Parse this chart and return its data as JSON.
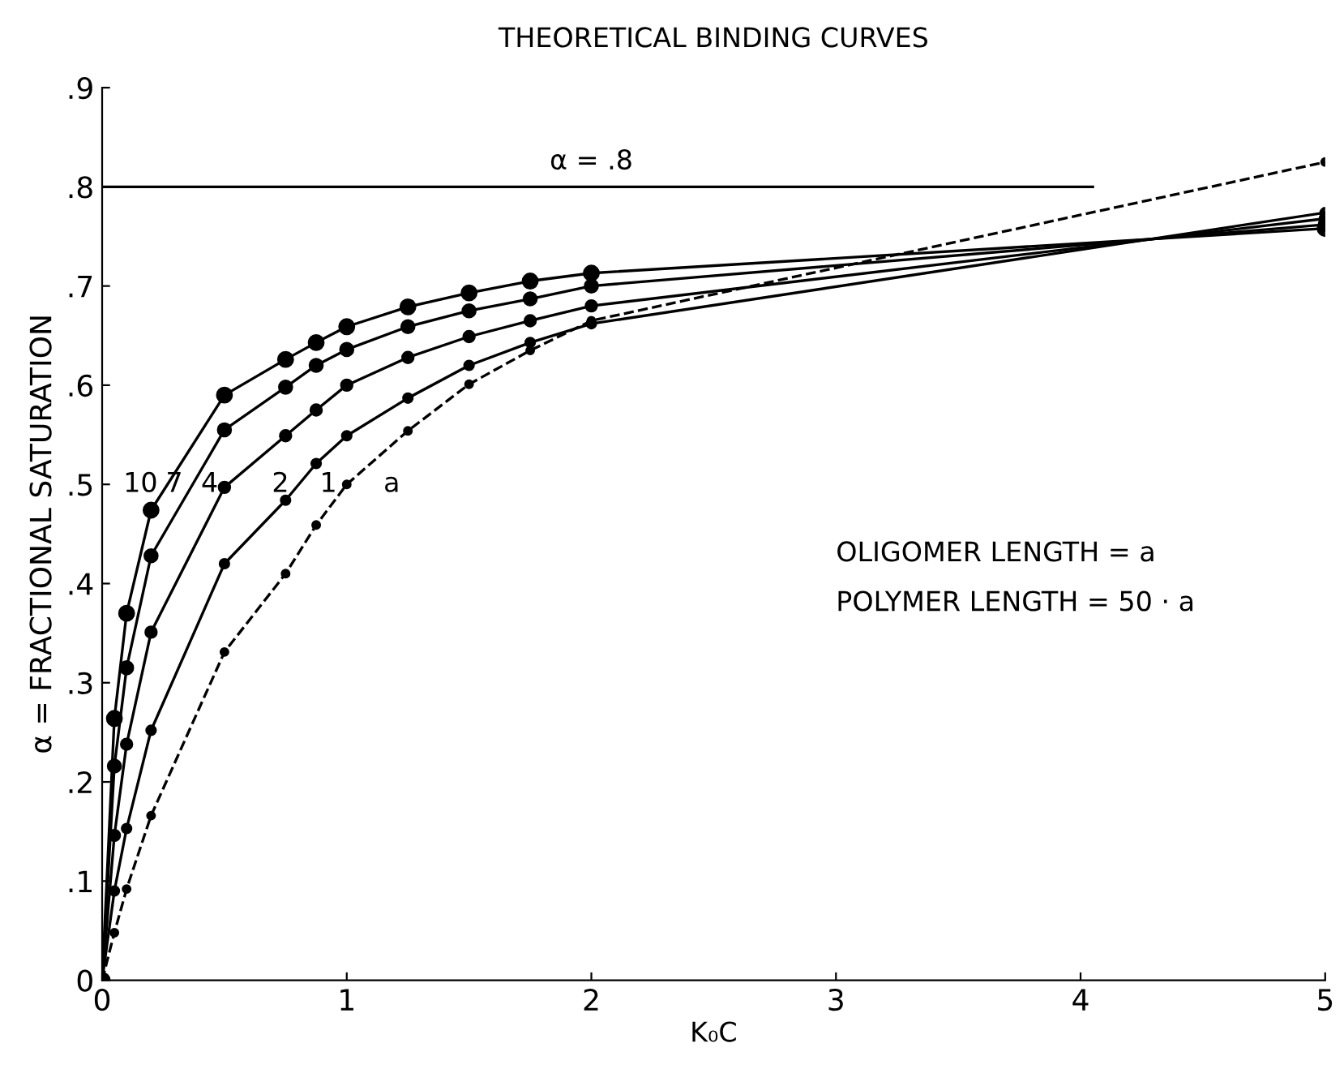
{
  "chart_data": {
    "type": "line",
    "title": "THEORETICAL BINDING CURVES",
    "xlabel": "K₀C",
    "ylabel": "α = FRACTIONAL SATURATION",
    "xlim": [
      0,
      5
    ],
    "ylim": [
      0,
      0.9
    ],
    "xticks": [
      0,
      1,
      2,
      3,
      4,
      5
    ],
    "yticks": [
      0,
      {
        "value": 0.1,
        "label": ".1"
      },
      {
        "value": 0.2,
        "label": ".2"
      },
      {
        "value": 0.3,
        "label": ".3"
      },
      {
        "value": 0.4,
        "label": ".4"
      },
      {
        "value": 0.5,
        "label": ".5"
      },
      {
        "value": 0.6,
        "label": ".6"
      },
      {
        "value": 0.7,
        "label": ".7"
      },
      {
        "value": 0.8,
        "label": ".8"
      },
      {
        "value": 0.9,
        "label": ".9"
      }
    ],
    "x": [
      0,
      0.05,
      0.1,
      0.2,
      0.5,
      0.75,
      0.875,
      1,
      1.25,
      1.5,
      1.75,
      2,
      5
    ],
    "marker": "circle",
    "grid": false,
    "legend": false,
    "series": [
      {
        "name": "10",
        "color": "#000000",
        "line_style": "solid",
        "values": [
          0,
          0.264,
          0.37,
          0.474,
          0.59,
          0.626,
          0.643,
          0.659,
          0.679,
          0.693,
          0.705,
          0.713,
          0.758
        ]
      },
      {
        "name": "7",
        "color": "#000000",
        "line_style": "solid",
        "values": [
          0,
          0.216,
          0.315,
          0.428,
          0.555,
          0.598,
          0.62,
          0.636,
          0.659,
          0.675,
          0.687,
          0.7,
          0.762
        ]
      },
      {
        "name": "4",
        "color": "#000000",
        "line_style": "solid",
        "values": [
          0,
          0.146,
          0.238,
          0.351,
          0.497,
          0.549,
          0.575,
          0.6,
          0.628,
          0.649,
          0.665,
          0.68,
          0.768
        ]
      },
      {
        "name": "2",
        "color": "#000000",
        "line_style": "solid",
        "values": [
          0,
          0.09,
          0.153,
          0.252,
          0.42,
          0.484,
          0.521,
          0.549,
          0.587,
          0.62,
          0.643,
          0.662,
          0.774
        ]
      },
      {
        "name": "1",
        "color": "#000000",
        "line_style": "dashed",
        "values": [
          0,
          0.048,
          0.092,
          0.166,
          0.331,
          0.41,
          0.459,
          0.5,
          0.554,
          0.601,
          0.635,
          0.665,
          0.825
        ]
      }
    ],
    "ref_lines": [
      {
        "axis": "y",
        "value": 0.8,
        "label": "α = .8",
        "color": "#000000"
      }
    ],
    "annotations": [
      "a",
      "OLIGOMER LENGTH = a",
      "POLYMER LENGTH = 50 · a"
    ]
  }
}
